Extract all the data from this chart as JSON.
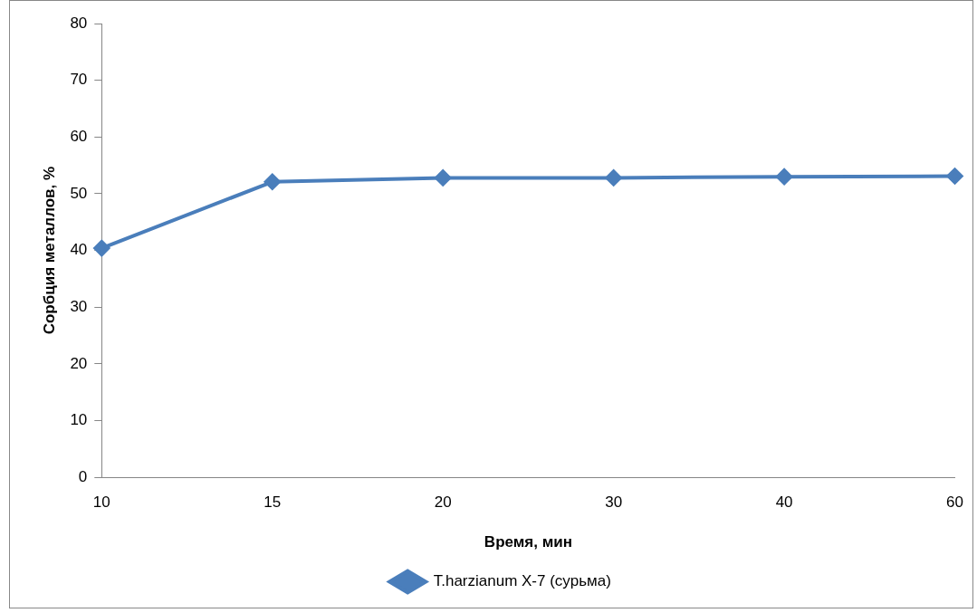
{
  "chart_data": {
    "type": "line",
    "xlabel": "Время, мин",
    "ylabel": "Сорбция металлов, %",
    "categories": [
      "10",
      "15",
      "20",
      "30",
      "40",
      "60"
    ],
    "series": [
      {
        "name": "T.harzianum X-7 (сурьма)",
        "color": "#4a7ebb",
        "values": [
          40.4,
          52.1,
          52.8,
          52.8,
          53.0,
          53.1
        ]
      }
    ],
    "ylim": [
      0,
      80
    ],
    "yticks": [
      0,
      10,
      20,
      30,
      40,
      50,
      60,
      70,
      80
    ],
    "grid": false,
    "legend": "bottom",
    "marker": "diamond",
    "line_style": "solid"
  }
}
